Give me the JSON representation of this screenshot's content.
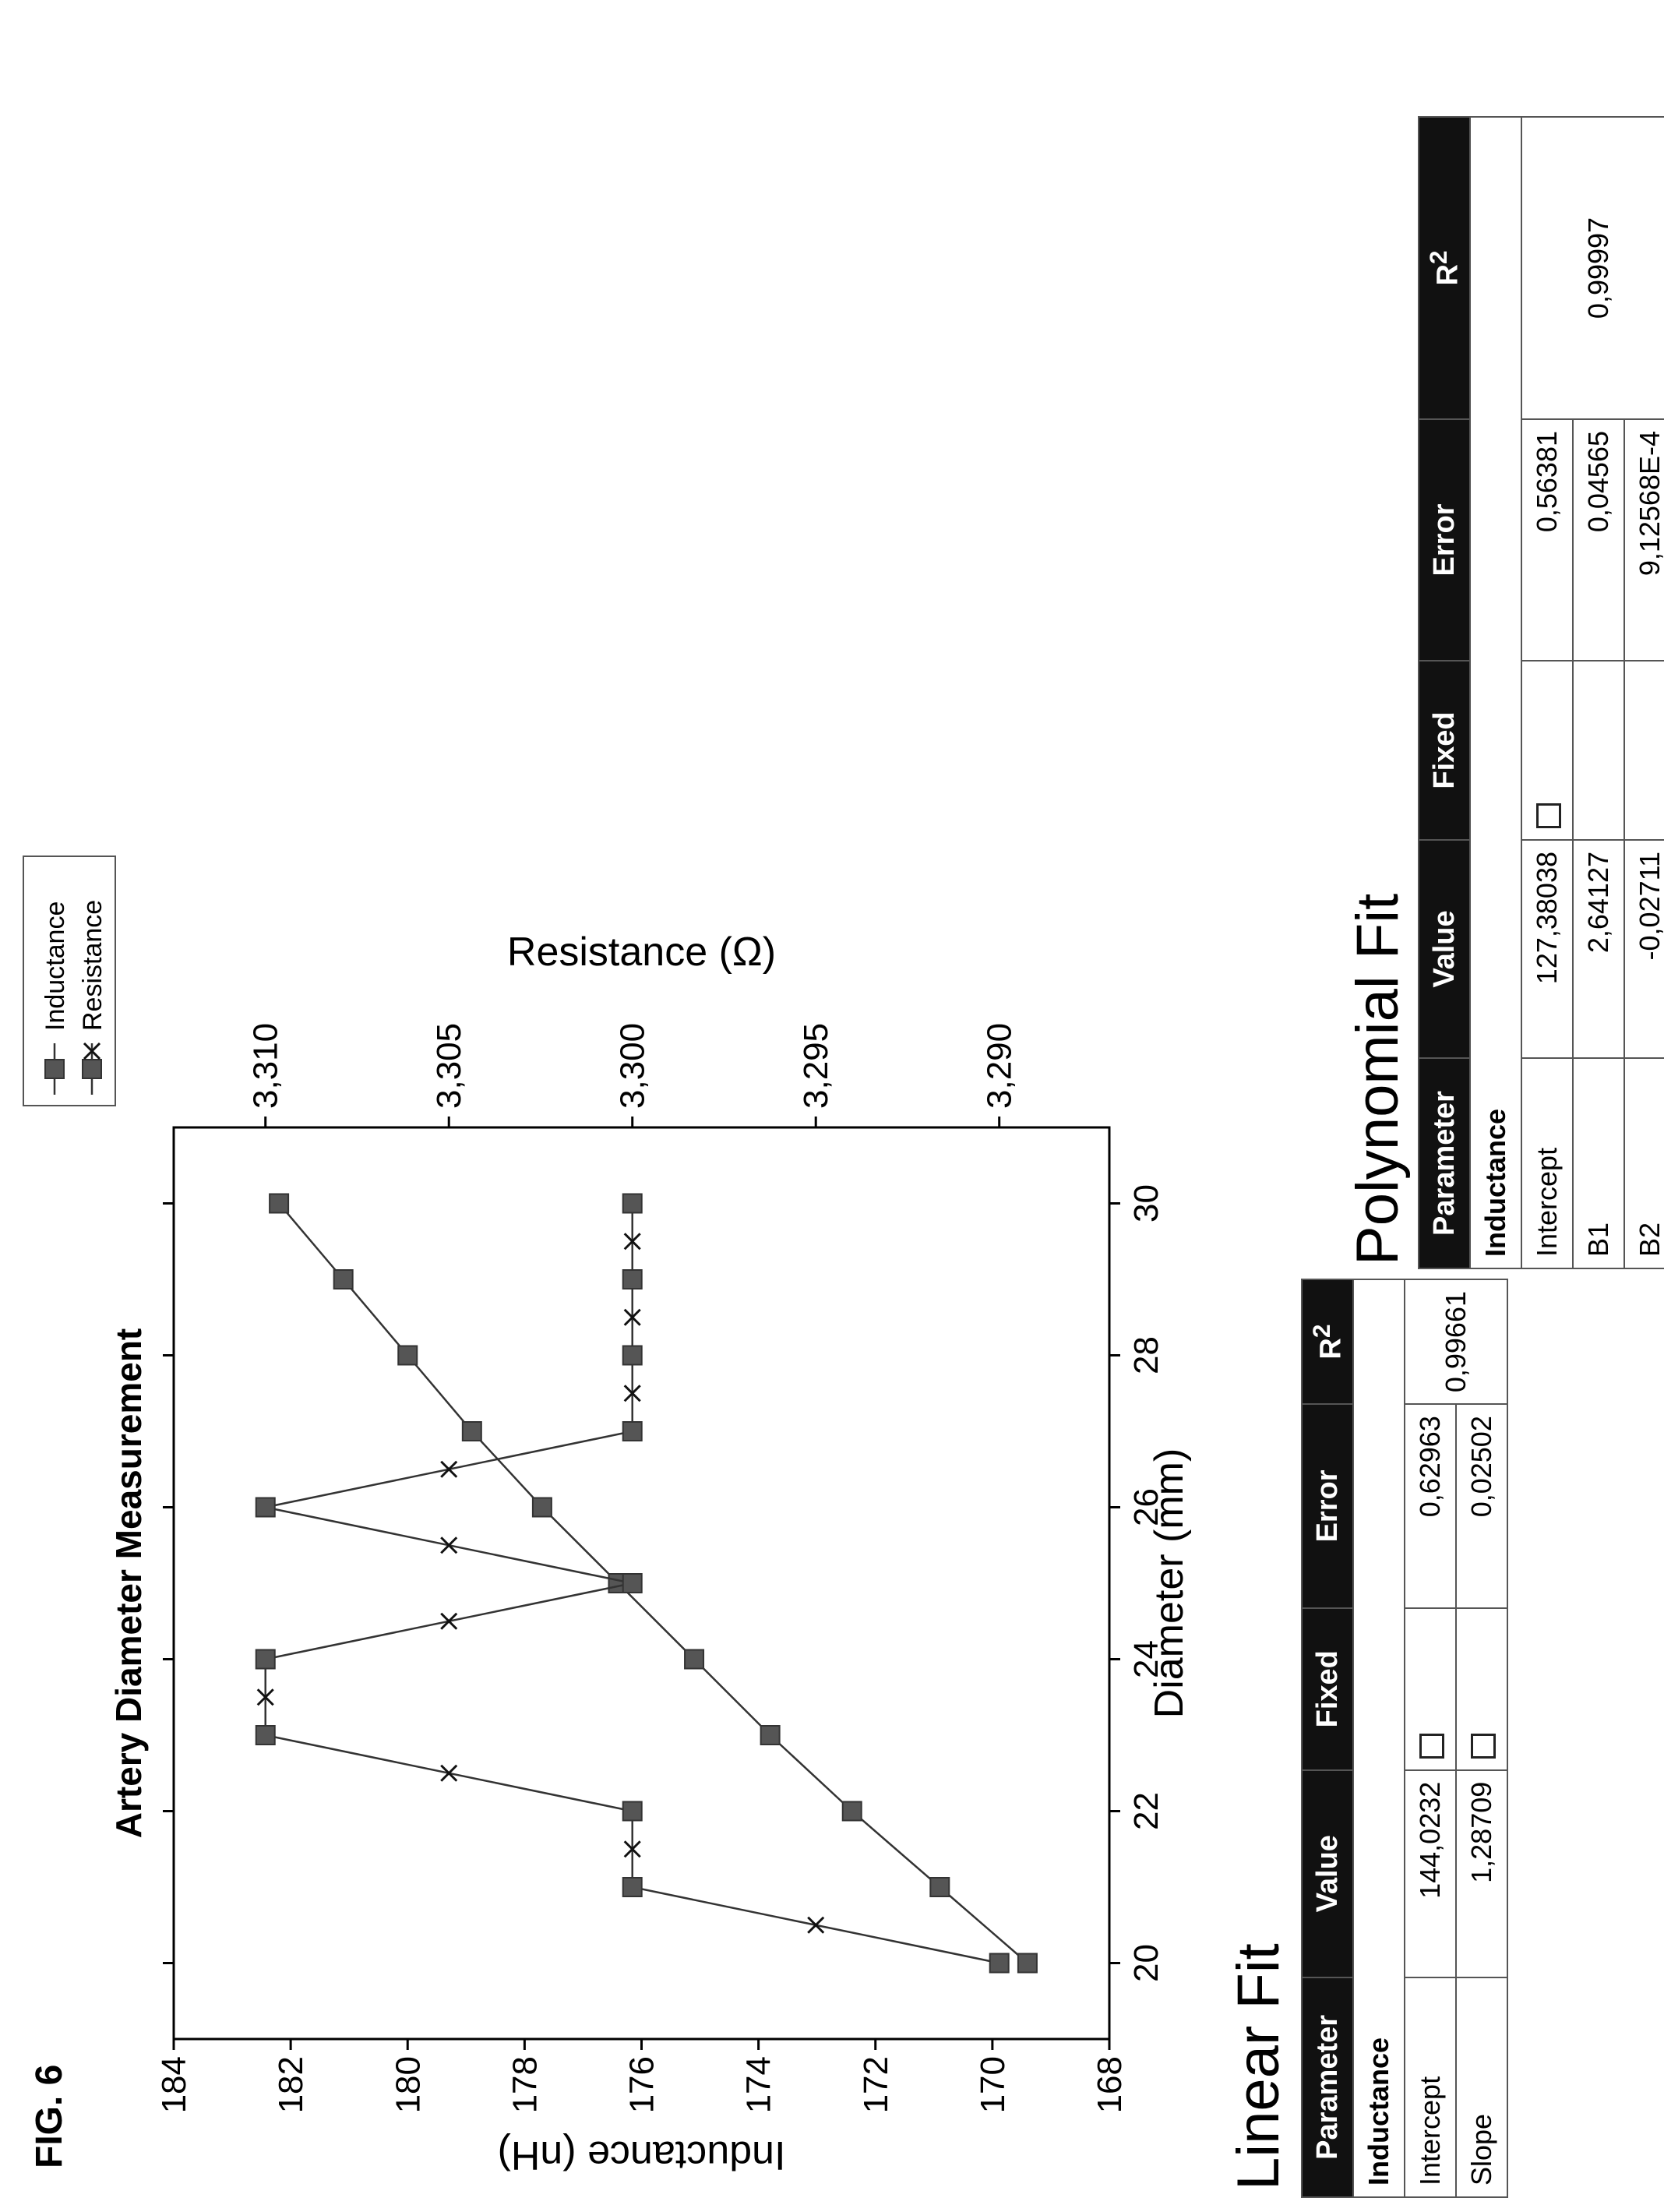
{
  "figure_label": "FIG. 6",
  "chart_data": {
    "type": "line",
    "title": "Artery Diameter Measurement",
    "xlabel": "Diameter (mm)",
    "ylabel": "Inductance (nH)",
    "y2label": "Resistance (Ω)",
    "xlim": [
      19,
      31
    ],
    "ylim": [
      168,
      184
    ],
    "y2lim": [
      3.287,
      3.3125
    ],
    "xticks": [
      "20",
      "22",
      "24",
      "26",
      "28",
      "30"
    ],
    "yticks": [
      "168",
      "170",
      "172",
      "174",
      "176",
      "178",
      "180",
      "182",
      "184"
    ],
    "y2ticks": [
      "3,290",
      "3,295",
      "3,300",
      "3,305",
      "3,310"
    ],
    "legend_position": "top-right",
    "series": [
      {
        "name": "Inductance",
        "axis": "left",
        "marker": "square",
        "x": [
          20,
          21,
          22,
          23,
          24,
          25,
          26,
          27,
          28,
          29,
          30
        ],
        "y": [
          169.4,
          170.9,
          172.4,
          173.8,
          175.1,
          176.4,
          177.7,
          178.9,
          180.0,
          181.1,
          182.2
        ]
      },
      {
        "name": "Resistance",
        "axis": "right",
        "marker": "square-x",
        "x": [
          20,
          21,
          22,
          23,
          24,
          25,
          26,
          27,
          28,
          29,
          30
        ],
        "y": [
          3.29,
          3.3,
          3.3,
          3.31,
          3.31,
          3.3,
          3.31,
          3.3,
          3.3,
          3.3,
          3.3
        ]
      }
    ]
  },
  "linear_fit": {
    "title": "Linear Fit",
    "headers": [
      "Parameter",
      "Value",
      "Fixed",
      "Error",
      "R",
      "2"
    ],
    "group": "Inductance",
    "rows": [
      {
        "param": "Intercept",
        "value": "144,0232",
        "error": "0,62963"
      },
      {
        "param": "Slope",
        "value": "1,28709",
        "error": "0,02502"
      }
    ],
    "r2": "0,99661"
  },
  "polynomial_fit": {
    "title": "Polynomial Fit",
    "headers": [
      "Parameter",
      "Value",
      "Fixed",
      "Error",
      "R",
      "2"
    ],
    "group": "Inductance",
    "rows": [
      {
        "param": "Intercept",
        "value": "127,38038",
        "error": "0,56381"
      },
      {
        "param": "B1",
        "value": "2,64127",
        "error": "0,04565"
      },
      {
        "param": "B2",
        "value": "-0,02711",
        "error": "9,12568E-4"
      }
    ],
    "r2": "0,99997"
  }
}
